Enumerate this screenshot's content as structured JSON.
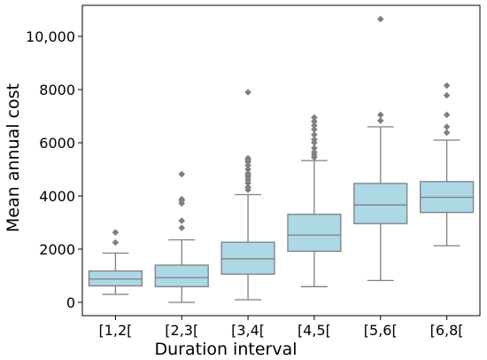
{
  "chart_data": {
    "type": "box",
    "xlabel": "Duration interval",
    "ylabel": "Mean annual cost",
    "ylim": [
      -500,
      11000
    ],
    "yticks": [
      0,
      2000,
      4000,
      6000,
      8000,
      10000
    ],
    "ytick_labels": [
      "0",
      "2000",
      "4000",
      "6000",
      "8000",
      "10,000"
    ],
    "categories": [
      "[1,2[",
      "[2,3[",
      "[3,4[",
      "[4,5[",
      "[5,6[",
      "[6,8["
    ],
    "boxes": [
      {
        "whisker_low": 300,
        "q1": 620,
        "median": 880,
        "q3": 1180,
        "whisker_high": 1850,
        "outliers": [
          2250,
          2630
        ]
      },
      {
        "whisker_low": 0,
        "q1": 590,
        "median": 930,
        "q3": 1400,
        "whisker_high": 2350,
        "outliers": [
          2800,
          3070,
          3720,
          3820,
          3880,
          4820
        ]
      },
      {
        "whisker_low": 100,
        "q1": 1060,
        "median": 1640,
        "q3": 2260,
        "whisker_high": 4050,
        "outliers": [
          4230,
          4330,
          4480,
          4600,
          4700,
          4780,
          4850,
          5000,
          5150,
          5280,
          5350,
          5420,
          7900
        ]
      },
      {
        "whisker_low": 590,
        "q1": 1920,
        "median": 2530,
        "q3": 3310,
        "whisker_high": 5330,
        "outliers": [
          5450,
          5550,
          5650,
          5800,
          6000,
          6120,
          6300,
          6500,
          6650,
          6800,
          6950
        ]
      },
      {
        "whisker_low": 820,
        "q1": 2960,
        "median": 3660,
        "q3": 4470,
        "whisker_high": 6600,
        "outliers": [
          6830,
          7050,
          10650
        ]
      },
      {
        "whisker_low": 2130,
        "q1": 3380,
        "median": 3950,
        "q3": 4540,
        "whisker_high": 6100,
        "outliers": [
          6380,
          6600,
          7050,
          7780,
          8150
        ]
      }
    ],
    "colors": {
      "box_fill": "#add8e6",
      "line": "#7f7f7f",
      "outlier": "#7f7f7f",
      "frame": "#000000"
    },
    "grid": false
  }
}
